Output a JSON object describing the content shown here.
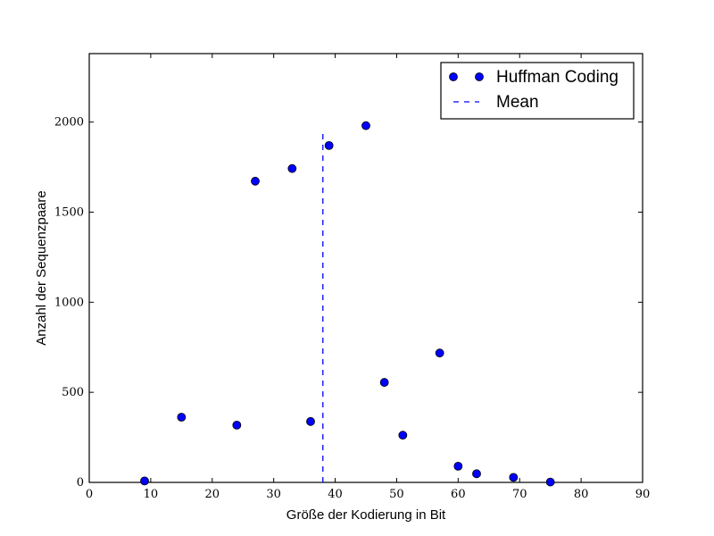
{
  "chart_data": {
    "type": "scatter",
    "xlabel": "Größe der Kodierung in Bit",
    "ylabel": "Anzahl der Sequenzpaare",
    "xlim": [
      0,
      90
    ],
    "ylim": [
      0,
      2380
    ],
    "x_ticks": [
      "0",
      "10",
      "20",
      "30",
      "40",
      "50",
      "60",
      "70",
      "80",
      "90"
    ],
    "y_ticks": [
      "0",
      "500",
      "1000",
      "1500",
      "2000"
    ],
    "grid": false,
    "legend_position": "top-right",
    "legend": [
      "Huffman Coding",
      "Mean"
    ],
    "series": [
      {
        "name": "Huffman Coding",
        "marker": "circle",
        "color": "#0000ff",
        "x": [
          9,
          15,
          24,
          27,
          33,
          36,
          39,
          45,
          48,
          51,
          57,
          60,
          63,
          69,
          75
        ],
        "y": [
          8,
          362,
          318,
          1672,
          1742,
          338,
          1870,
          1980,
          555,
          262,
          718,
          90,
          48,
          28,
          2
        ]
      },
      {
        "name": "Mean",
        "style": "dashed-line",
        "color": "#0000ff",
        "x": 38,
        "y_range": [
          0,
          1950
        ]
      }
    ]
  }
}
